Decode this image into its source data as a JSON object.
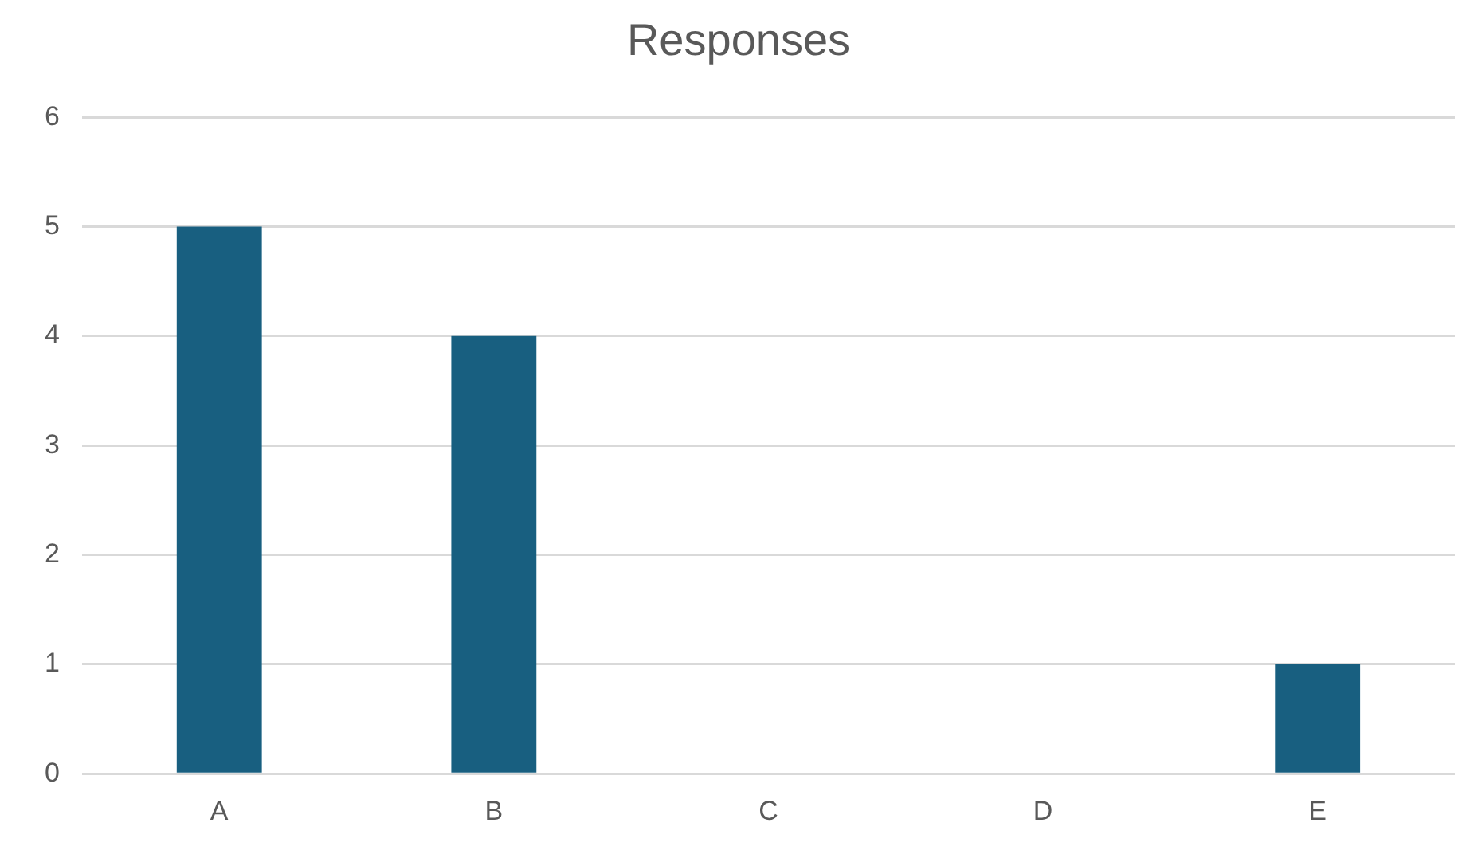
{
  "chart_data": {
    "type": "bar",
    "title": "Responses",
    "categories": [
      "A",
      "B",
      "C",
      "D",
      "E"
    ],
    "values": [
      5,
      4,
      0,
      0,
      1
    ],
    "color": "#185f80",
    "ylim": [
      0,
      6
    ],
    "yticks": [
      0,
      1,
      2,
      3,
      4,
      5,
      6
    ],
    "grid": "y",
    "legend": false
  }
}
